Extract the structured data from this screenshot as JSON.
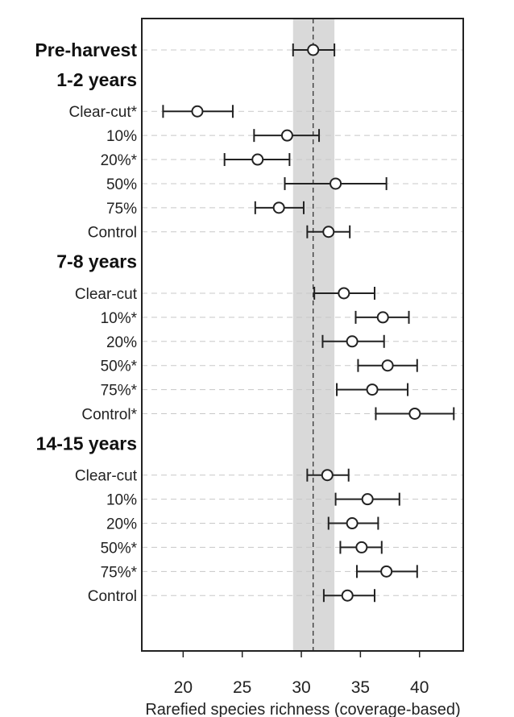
{
  "chart_data": {
    "type": "forest",
    "xlabel": "Rarefied species richness (coverage-based)",
    "xlim": [
      16.5,
      43.7
    ],
    "x_ticks": [
      20,
      25,
      30,
      35,
      40
    ],
    "reference": {
      "value": 31,
      "band": [
        29.3,
        32.8
      ]
    },
    "grid": "horizontal-dashed",
    "rows": [
      {
        "label": "Pre-harvest",
        "heading": true,
        "estimate": 31.0,
        "lower": 29.3,
        "upper": 32.8
      },
      {
        "label": "1-2 years",
        "heading": true
      },
      {
        "label": "Clear-cut*",
        "estimate": 21.2,
        "lower": 18.3,
        "upper": 24.2
      },
      {
        "label": "10%",
        "estimate": 28.8,
        "lower": 26.0,
        "upper": 31.5
      },
      {
        "label": "20%*",
        "estimate": 26.3,
        "lower": 23.5,
        "upper": 29.0
      },
      {
        "label": "50%",
        "estimate": 32.9,
        "lower": 28.6,
        "upper": 37.2
      },
      {
        "label": "75%",
        "estimate": 28.1,
        "lower": 26.1,
        "upper": 30.2
      },
      {
        "label": "Control",
        "estimate": 32.3,
        "lower": 30.5,
        "upper": 34.1
      },
      {
        "label": "7-8 years",
        "heading": true
      },
      {
        "label": "Clear-cut",
        "estimate": 33.6,
        "lower": 31.1,
        "upper": 36.2
      },
      {
        "label": "10%*",
        "estimate": 36.9,
        "lower": 34.6,
        "upper": 39.1
      },
      {
        "label": "20%",
        "estimate": 34.3,
        "lower": 31.8,
        "upper": 37.0
      },
      {
        "label": "50%*",
        "estimate": 37.3,
        "lower": 34.8,
        "upper": 39.8
      },
      {
        "label": "75%*",
        "estimate": 36.0,
        "lower": 33.0,
        "upper": 39.0
      },
      {
        "label": "Control*",
        "estimate": 39.6,
        "lower": 36.3,
        "upper": 42.9
      },
      {
        "label": "14-15 years",
        "heading": true
      },
      {
        "label": "Clear-cut",
        "estimate": 32.2,
        "lower": 30.5,
        "upper": 34.0
      },
      {
        "label": "10%",
        "estimate": 35.6,
        "lower": 32.9,
        "upper": 38.3
      },
      {
        "label": "20%",
        "estimate": 34.3,
        "lower": 32.3,
        "upper": 36.5
      },
      {
        "label": "50%*",
        "estimate": 35.1,
        "lower": 33.3,
        "upper": 36.8
      },
      {
        "label": "75%*",
        "estimate": 37.2,
        "lower": 34.7,
        "upper": 39.8
      },
      {
        "label": "Control",
        "estimate": 33.9,
        "lower": 31.9,
        "upper": 36.2
      }
    ]
  }
}
